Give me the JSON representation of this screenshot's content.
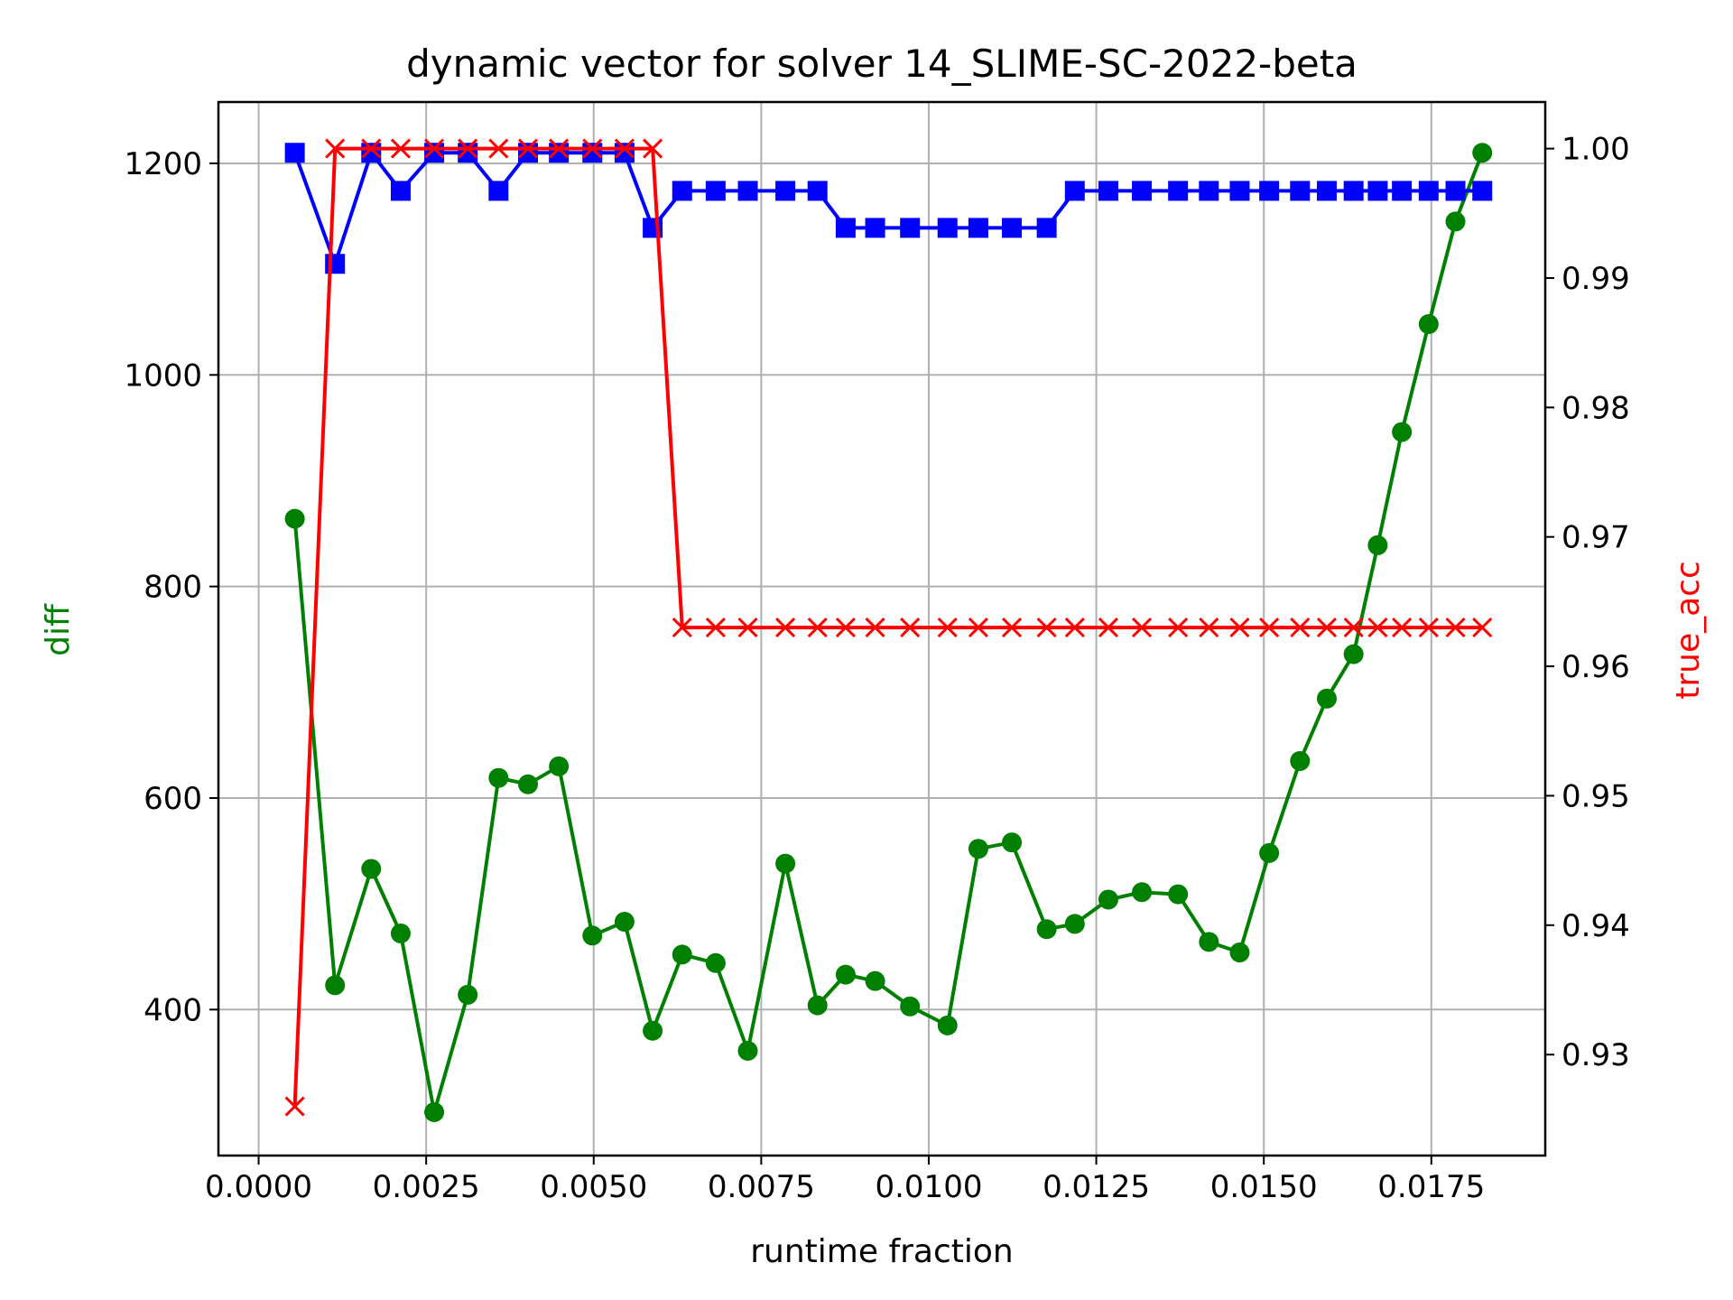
{
  "chart_data": {
    "type": "line",
    "title": "dynamic vector for solver 14_SLIME-SC-2022-beta",
    "xlabel": "runtime fraction",
    "ylabel_left": "diff",
    "ylabel_right": "true_acc",
    "xlim": [
      -0.0006,
      0.0192
    ],
    "ylim_left": [
      262,
      1258
    ],
    "ylim_right": [
      0.9222,
      1.0036
    ],
    "x_ticks": [
      "0.0000",
      "0.0025",
      "0.0050",
      "0.0075",
      "0.0100",
      "0.0125",
      "0.0150",
      "0.0175"
    ],
    "x_tick_values": [
      0.0,
      0.0025,
      0.005,
      0.0075,
      0.01,
      0.0125,
      0.015,
      0.0175
    ],
    "y_left_ticks": [
      "400",
      "600",
      "800",
      "1000",
      "1200"
    ],
    "y_left_tick_values": [
      400,
      600,
      800,
      1000,
      1200
    ],
    "y_right_ticks": [
      "0.93",
      "0.94",
      "0.95",
      "0.96",
      "0.97",
      "0.98",
      "0.99",
      "1.00"
    ],
    "y_right_tick_values": [
      0.93,
      0.94,
      0.95,
      0.96,
      0.97,
      0.98,
      0.99,
      1.0
    ],
    "grid": true,
    "x": [
      0.00054,
      0.00114,
      0.00168,
      0.00212,
      0.00262,
      0.00312,
      0.00358,
      0.00402,
      0.00448,
      0.00498,
      0.00546,
      0.00588,
      0.00632,
      0.00682,
      0.0073,
      0.00786,
      0.00834,
      0.00876,
      0.0092,
      0.00972,
      0.01028,
      0.01074,
      0.01124,
      0.01176,
      0.01218,
      0.01268,
      0.01318,
      0.01372,
      0.01418,
      0.01464,
      0.01508,
      0.01554,
      0.01594,
      0.01634,
      0.0167,
      0.01706,
      0.01746,
      0.01786,
      0.01826
    ],
    "series": [
      {
        "axis": "left",
        "color": "#008000",
        "marker": "circle",
        "values": [
          864,
          423,
          533,
          472,
          303,
          414,
          619,
          613,
          630,
          470,
          483,
          380,
          452,
          444,
          361,
          538,
          404,
          433,
          427,
          403,
          385,
          552,
          558,
          476,
          481,
          504,
          511,
          509,
          464,
          454,
          548,
          635,
          694,
          736,
          839,
          946,
          1048,
          1145,
          1210
        ]
      },
      {
        "axis": "left",
        "color": "#0000ff",
        "marker": "square",
        "values": [
          1210,
          1105,
          1210,
          1174,
          1210,
          1210,
          1174,
          1210,
          1210,
          1210,
          1210,
          1139,
          1174,
          1174,
          1174,
          1174,
          1174,
          1139,
          1139,
          1139,
          1139,
          1139,
          1139,
          1139,
          1174,
          1174,
          1174,
          1174,
          1174,
          1174,
          1174,
          1174,
          1174,
          1174,
          1174,
          1174,
          1174,
          1174,
          1174
        ]
      },
      {
        "axis": "right",
        "color": "#ff0000",
        "marker": "x",
        "values": [
          0.926,
          1.0,
          1.0,
          1.0,
          1.0,
          1.0,
          1.0,
          1.0,
          1.0,
          1.0,
          1.0,
          1.0,
          0.963,
          0.963,
          0.963,
          0.963,
          0.963,
          0.963,
          0.963,
          0.963,
          0.963,
          0.963,
          0.963,
          0.963,
          0.963,
          0.963,
          0.963,
          0.963,
          0.963,
          0.963,
          0.963,
          0.963,
          0.963,
          0.963,
          0.963,
          0.963,
          0.963,
          0.963,
          0.963
        ]
      }
    ]
  }
}
